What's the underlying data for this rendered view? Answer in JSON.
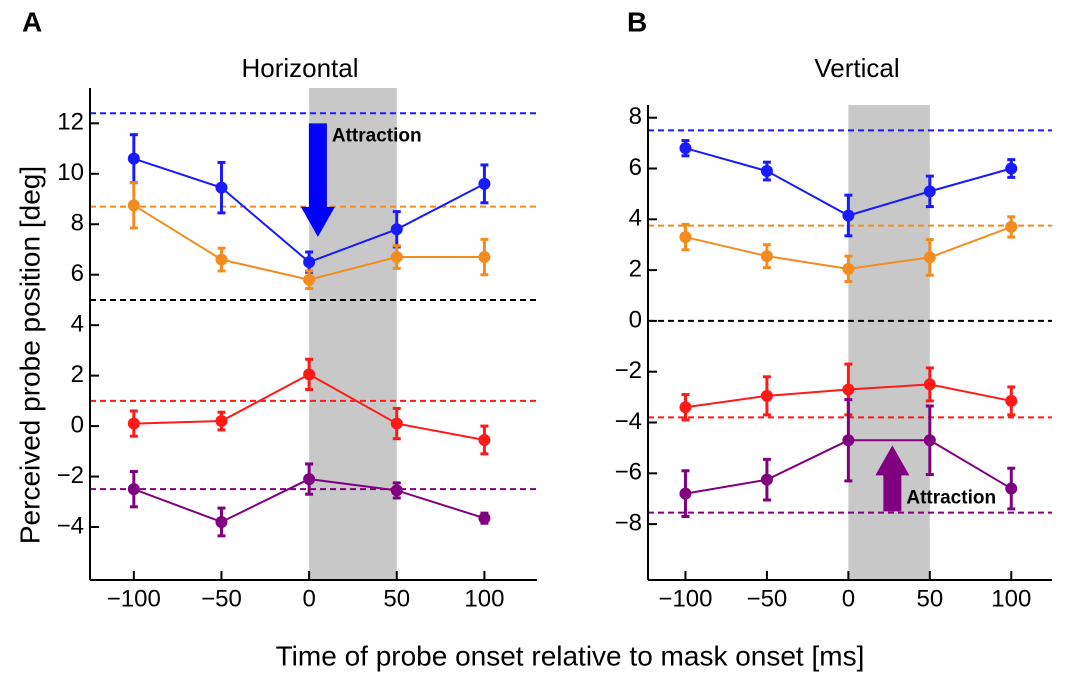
{
  "chart_data": [
    {
      "type": "line",
      "panel": "A",
      "title": "Horizontal",
      "ylabel": "Perceived probe position [deg]",
      "x": [
        -100,
        -50,
        0,
        50,
        100
      ],
      "xlim": [
        -125,
        130
      ],
      "xticks": [
        {
          "value": -100,
          "label": "−100"
        },
        {
          "value": -50,
          "label": "−50"
        },
        0,
        50,
        100
      ],
      "ylim": [
        -6.1,
        13.4
      ],
      "yticks": [
        {
          "value": -4,
          "label": "−4"
        },
        {
          "value": -2,
          "label": "−2"
        },
        0,
        2,
        4,
        6,
        8,
        10,
        12
      ],
      "shaded_x": [
        0,
        50
      ],
      "shade_color": "#c8c8c8",
      "reference_lines": [
        {
          "value": 12.4,
          "color": "#1a1aff"
        },
        {
          "value": 8.7,
          "color": "#f28c1e"
        },
        {
          "value": 5.0,
          "color": "#000000"
        },
        {
          "value": 1.0,
          "color": "#ff1a1a"
        },
        {
          "value": -2.5,
          "color": "#800080"
        }
      ],
      "series": [
        {
          "color": "#1a1aff",
          "values": [
            10.6,
            9.45,
            6.5,
            7.8,
            9.6
          ],
          "errors": [
            0.95,
            1.0,
            0.4,
            0.7,
            0.75
          ]
        },
        {
          "color": "#f28c1e",
          "values": [
            8.75,
            6.6,
            5.8,
            6.7,
            6.7
          ],
          "errors": [
            0.9,
            0.45,
            0.35,
            0.45,
            0.7
          ]
        },
        {
          "color": "#ff1a1a",
          "values": [
            0.1,
            0.2,
            2.05,
            0.1,
            -0.55
          ],
          "errors": [
            0.5,
            0.35,
            0.6,
            0.6,
            0.55
          ]
        },
        {
          "color": "#800080",
          "values": [
            -2.5,
            -3.8,
            -2.1,
            -2.55,
            -3.65
          ],
          "errors": [
            0.7,
            0.55,
            0.6,
            0.3,
            0.2
          ]
        }
      ],
      "annotation": {
        "text": "Attraction",
        "color": "#0000ff",
        "x": 5,
        "y_from": 12.0,
        "y_to": 7.5
      }
    },
    {
      "type": "line",
      "panel": "B",
      "title": "Vertical",
      "x": [
        -100,
        -50,
        0,
        50,
        100
      ],
      "xlim": [
        -123,
        125
      ],
      "xticks": [
        {
          "value": -100,
          "label": "−100"
        },
        {
          "value": -50,
          "label": "−50"
        },
        0,
        50,
        100
      ],
      "ylim": [
        -10.2,
        8.5
      ],
      "yticks": [
        {
          "value": -8,
          "label": "−8"
        },
        {
          "value": -6,
          "label": "−6"
        },
        {
          "value": -4,
          "label": "−4"
        },
        {
          "value": -2,
          "label": "−2"
        },
        0,
        2,
        4,
        6,
        8
      ],
      "shaded_x": [
        0,
        50
      ],
      "shade_color": "#c8c8c8",
      "reference_lines": [
        {
          "value": 7.5,
          "color": "#1a1aff"
        },
        {
          "value": 3.75,
          "color": "#f28c1e"
        },
        {
          "value": 0,
          "color": "#000000"
        },
        {
          "value": -3.8,
          "color": "#ff1a1a"
        },
        {
          "value": -7.55,
          "color": "#800080"
        }
      ],
      "series": [
        {
          "color": "#1a1aff",
          "values": [
            6.8,
            5.9,
            4.15,
            5.1,
            6.0
          ],
          "errors": [
            0.3,
            0.35,
            0.8,
            0.6,
            0.35
          ]
        },
        {
          "color": "#f28c1e",
          "values": [
            3.3,
            2.55,
            2.05,
            2.5,
            3.7
          ],
          "errors": [
            0.5,
            0.45,
            0.5,
            0.7,
            0.4
          ]
        },
        {
          "color": "#ff1a1a",
          "values": [
            -3.4,
            -2.95,
            -2.7,
            -2.5,
            -3.15
          ],
          "errors": [
            0.5,
            0.75,
            1.0,
            0.65,
            0.55
          ]
        },
        {
          "color": "#800080",
          "values": [
            -6.8,
            -6.25,
            -4.7,
            -4.7,
            -6.6
          ],
          "errors": [
            0.9,
            0.8,
            1.6,
            1.35,
            0.8
          ]
        }
      ],
      "annotation": {
        "text": "Attraction",
        "color": "#800080",
        "x": 27,
        "y_from": -7.5,
        "y_to": -4.9
      }
    }
  ],
  "xlabel": "Time of probe onset relative to mask onset [ms]"
}
